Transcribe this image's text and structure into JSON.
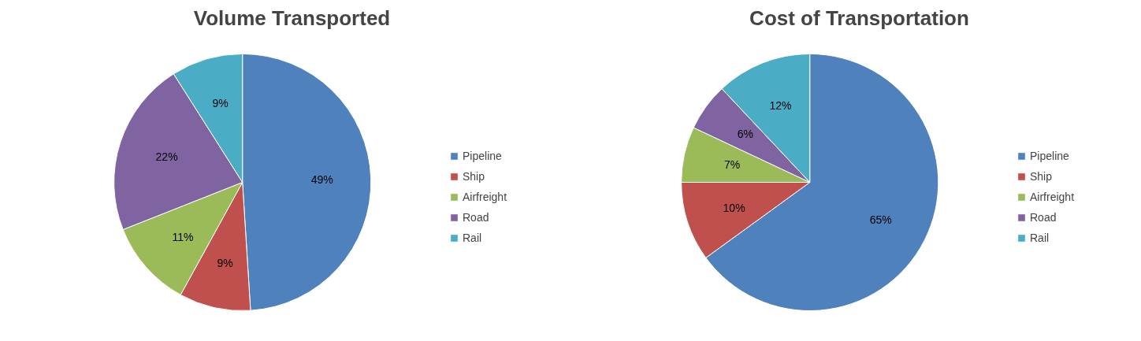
{
  "chart_data": [
    {
      "type": "pie",
      "title": "Volume Transported",
      "categories": [
        "Pipeline",
        "Ship",
        "Airfreight",
        "Road",
        "Rail"
      ],
      "values": [
        49,
        9,
        11,
        22,
        9
      ],
      "colors": [
        "#4f81bd",
        "#c0504d",
        "#9bbb59",
        "#8064a2",
        "#4bacc6"
      ],
      "value_labels": [
        "49%",
        "9%",
        "11%",
        "22%",
        "9%"
      ],
      "legend": "right"
    },
    {
      "type": "pie",
      "title": "Cost of Transportation",
      "categories": [
        "Pipeline",
        "Ship",
        "Airfreight",
        "Road",
        "Rail"
      ],
      "values": [
        65,
        10,
        7,
        6,
        12
      ],
      "colors": [
        "#4f81bd",
        "#c0504d",
        "#9bbb59",
        "#8064a2",
        "#4bacc6"
      ],
      "value_labels": [
        "65%",
        "10%",
        "7%",
        "6%",
        "12%"
      ],
      "legend": "right"
    }
  ]
}
